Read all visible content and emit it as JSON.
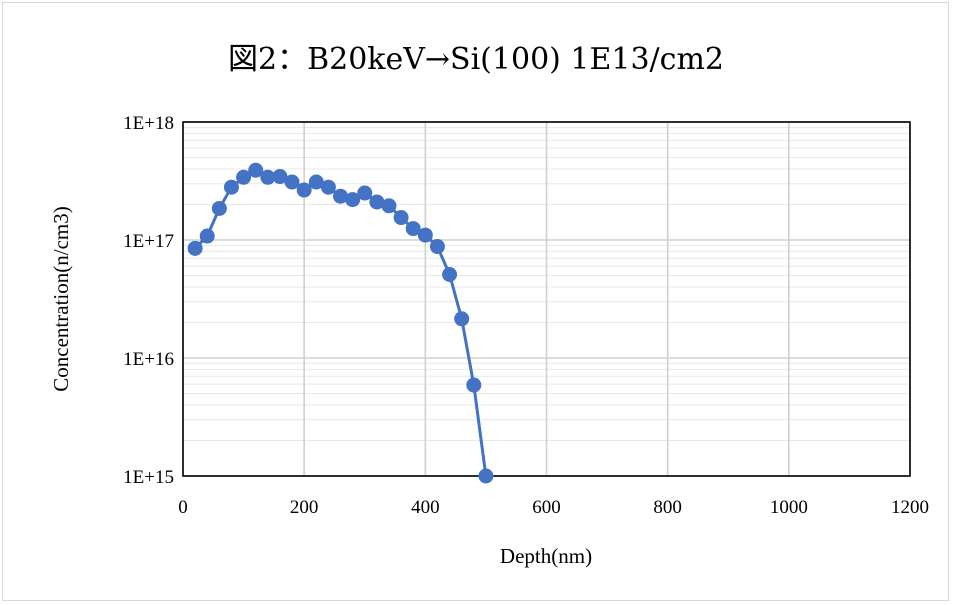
{
  "chart_data": {
    "type": "line",
    "title": "図2：B20keV→Si(100) 1E13/cm2",
    "xlabel": "Depth(nm)",
    "ylabel": "Concentration(n/cm3)",
    "xlim": [
      0,
      1200
    ],
    "ylim": [
      1000000000000000.0,
      1e+18
    ],
    "yscale": "log",
    "x_ticks": [
      "0",
      "200",
      "400",
      "600",
      "800",
      "1000",
      "1200"
    ],
    "y_ticks": [
      "1E+15",
      "1E+16",
      "1E+17",
      "1E+18"
    ],
    "grid": true,
    "legend": "none",
    "series_color": "#4472c4",
    "series": [
      {
        "x": [
          20,
          40,
          60,
          80,
          100,
          120,
          140,
          160,
          180,
          200,
          220,
          240,
          260,
          280,
          300,
          320,
          340,
          360,
          380,
          400,
          420,
          440,
          460,
          480,
          500
        ],
        "y": [
          8.5e+16,
          1.08e+17,
          1.85e+17,
          2.8e+17,
          3.4e+17,
          3.9e+17,
          3.4e+17,
          3.45e+17,
          3.1e+17,
          2.65e+17,
          3.1e+17,
          2.8e+17,
          2.35e+17,
          2.2e+17,
          2.5e+17,
          2.1e+17,
          1.95e+17,
          1.55e+17,
          1.25e+17,
          1.1e+17,
          8.8e+16,
          5.1e+16,
          2.15e+16,
          5900000000000000.0,
          1000000000000000.0
        ]
      }
    ]
  }
}
